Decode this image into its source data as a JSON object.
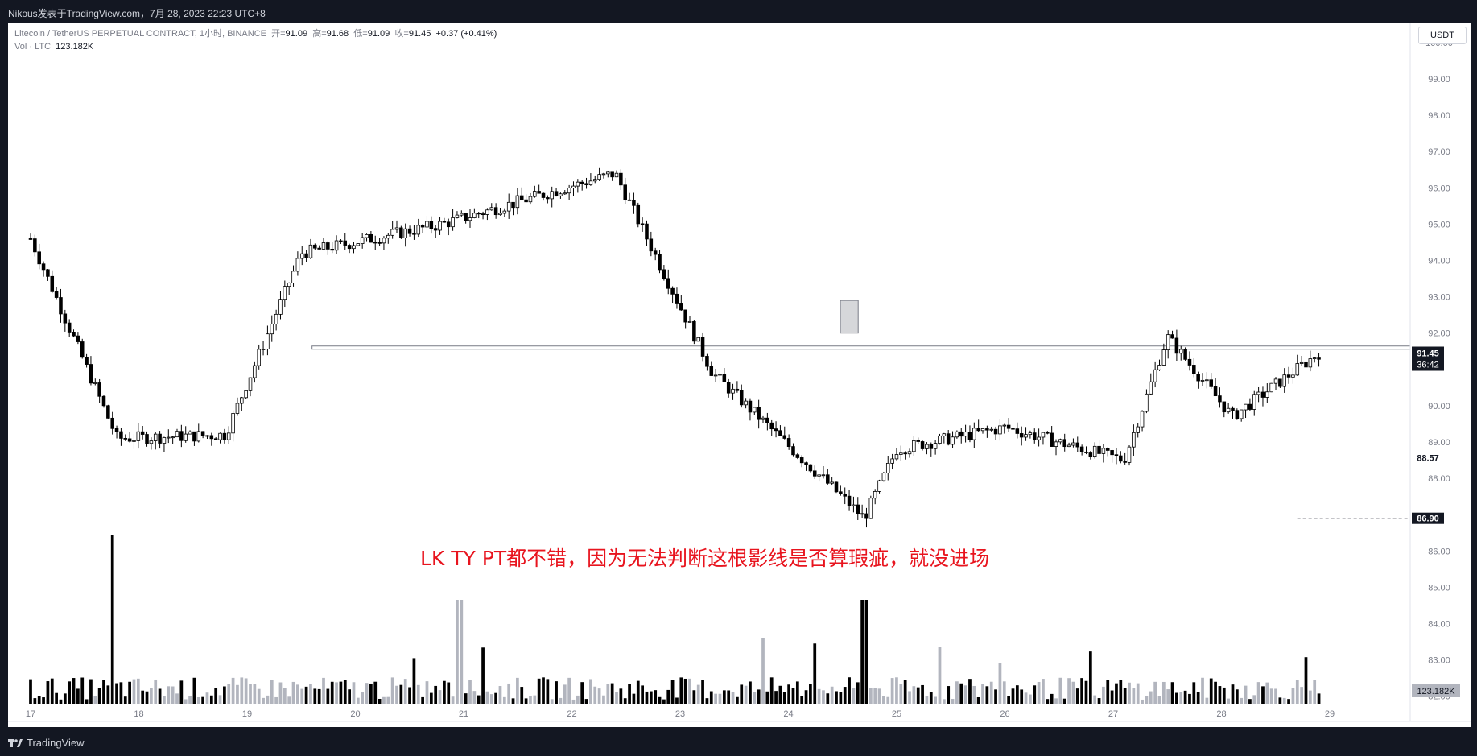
{
  "header": {
    "published": "Nikous发表于TradingView.com，7月 28, 2023 22:23 UTC+8"
  },
  "legend": {
    "symbol": "Litecoin / TetherUS PERPETUAL CONTRACT, 1小时, BINANCE",
    "open_label": "开=",
    "open": "91.09",
    "high_label": "高=",
    "high": "91.68",
    "low_label": "低=",
    "low": "91.09",
    "close_label": "收=",
    "close": "91.45",
    "change": "+0.37 (+0.41%)",
    "vol_label": "Vol · LTC",
    "vol": "123.182K"
  },
  "currency": "USDT",
  "annotation": "LK TY PT都不错，因为无法判断这根影线是否算瑕疵，就没进场",
  "footer": {
    "brand": "TradingView"
  },
  "colors": {
    "up": "#ffffff",
    "down": "#000000",
    "candle_border": "#000000",
    "volume_up": "#b2b5be",
    "volume_down": "#000000",
    "annotation": "#e8141e",
    "background": "#ffffff",
    "frame": "#131722"
  },
  "chart_data": {
    "type": "candlestick",
    "interval": "1h",
    "y_axis": {
      "ticks": [
        "100.00",
        "99.00",
        "98.00",
        "97.00",
        "96.00",
        "95.00",
        "94.00",
        "93.00",
        "92.00",
        "90.00",
        "89.00",
        "88.00",
        "86.00",
        "85.00",
        "84.00",
        "83.00",
        "82.00"
      ],
      "ylim": [
        82.0,
        100.3
      ]
    },
    "x_axis": {
      "ticks": [
        "17",
        "18",
        "19",
        "20",
        "21",
        "22",
        "23",
        "24",
        "25",
        "26",
        "27",
        "28",
        "29"
      ]
    },
    "price_labels": {
      "last": "91.45",
      "countdown": "36:42",
      "level_1": "88.57",
      "level_2": "86.90",
      "volume": "123.182K"
    },
    "horizontal_levels": [
      91.6,
      86.9
    ],
    "highlight_box": {
      "x_from": "24 17:00",
      "x_to": "24 20:00",
      "y_low": 92.0,
      "y_high": 92.9
    },
    "key_points": [
      {
        "day": 17.0,
        "price": 94.6
      },
      {
        "day": 17.8,
        "price": 89.1,
        "note": "low wick"
      },
      {
        "day": 18.8,
        "price": 89.2,
        "note": "low wick"
      },
      {
        "day": 19.5,
        "price": 94.2
      },
      {
        "day": 20.8,
        "price": 95.0
      },
      {
        "day": 22.4,
        "price": 96.4,
        "note": "high wick"
      },
      {
        "day": 23.3,
        "price": 90.9
      },
      {
        "day": 24.7,
        "price": 86.9,
        "note": "spike low"
      },
      {
        "day": 25.0,
        "price": 88.8
      },
      {
        "day": 26.0,
        "price": 89.4
      },
      {
        "day": 27.1,
        "price": 88.5
      },
      {
        "day": 27.5,
        "price": 91.9
      },
      {
        "day": 28.1,
        "price": 89.7
      },
      {
        "day": 28.9,
        "price": 91.45
      }
    ],
    "volume_spikes": [
      {
        "day": 17.75,
        "level": "max"
      },
      {
        "day": 20.95,
        "level": "high"
      },
      {
        "day": 24.7,
        "level": "high"
      }
    ]
  }
}
